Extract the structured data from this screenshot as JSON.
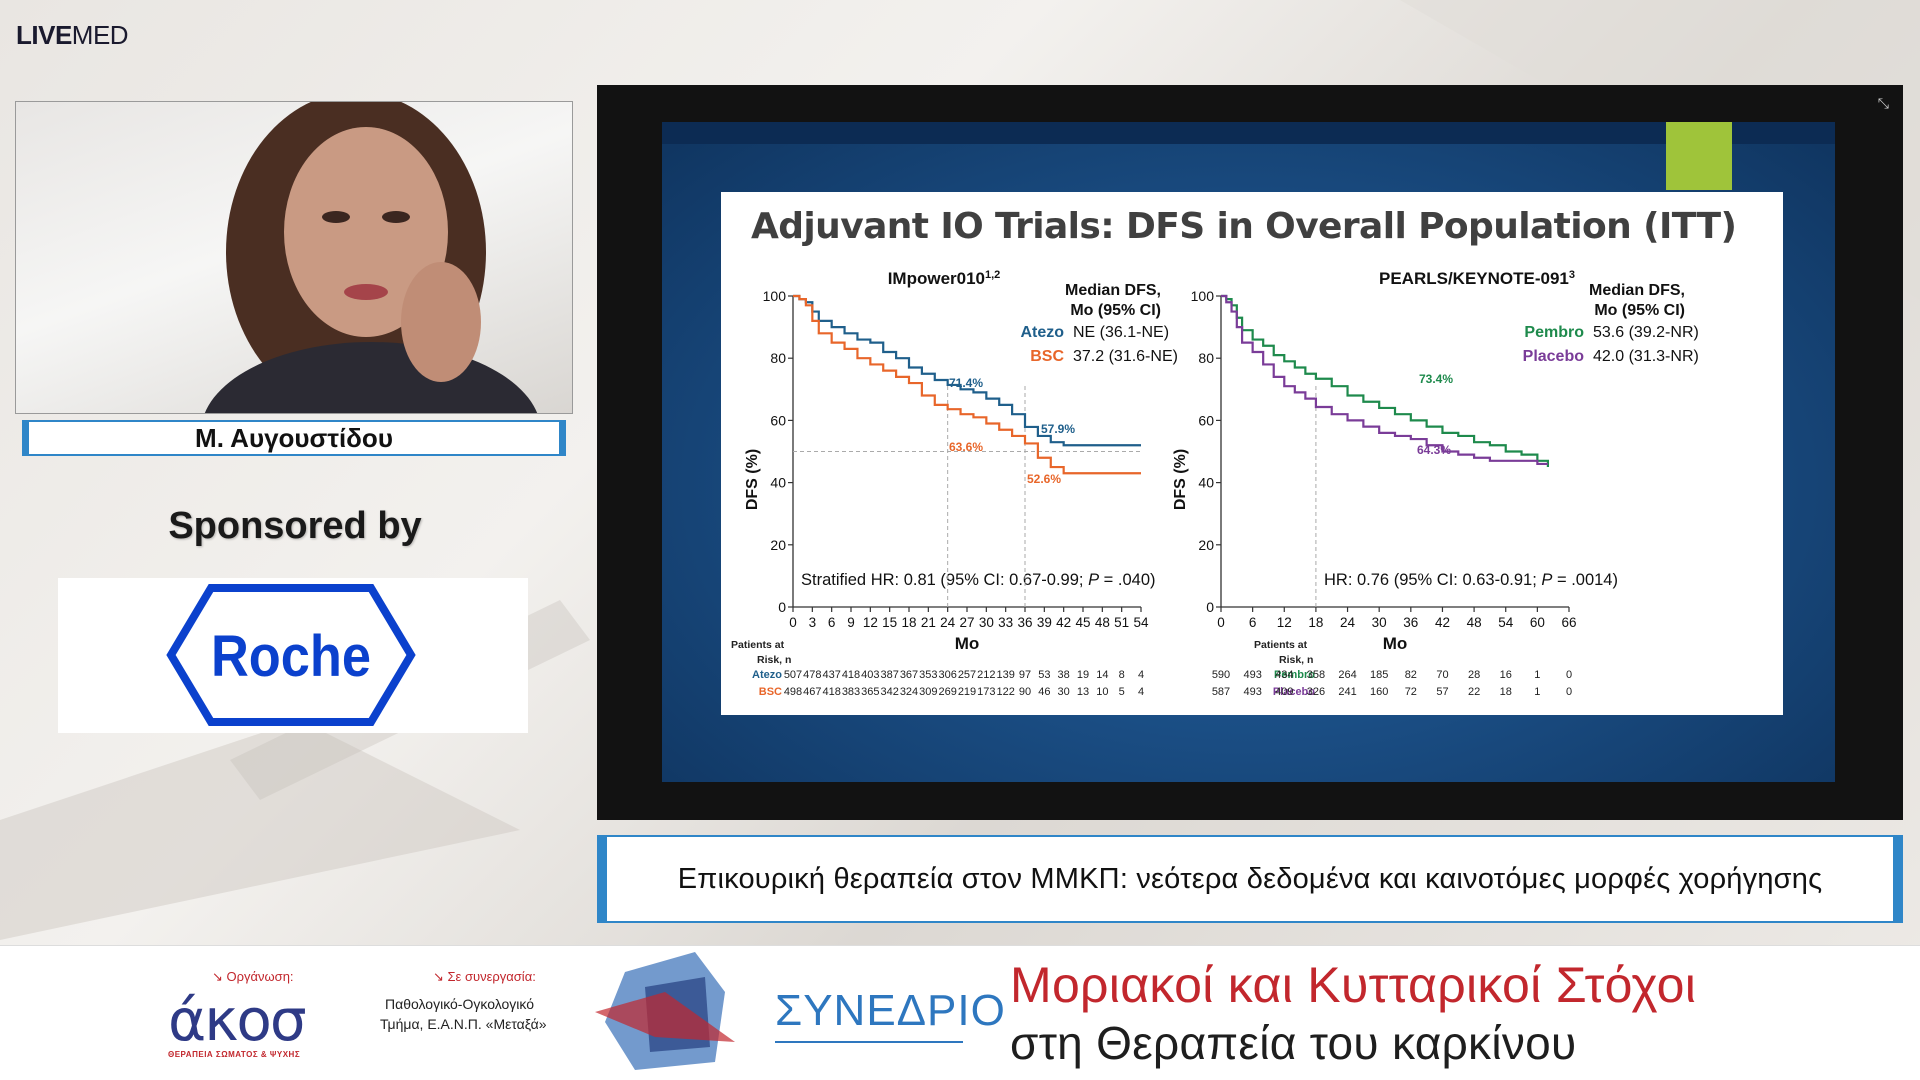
{
  "brand": {
    "bold": "LIVE",
    "rest": "MED"
  },
  "speaker": {
    "name": "Μ. Αυγουστίδου"
  },
  "sponsor": {
    "heading": "Sponsored by",
    "logo_text": "Roche",
    "logo_color": "#0b41cd"
  },
  "slide": {
    "title": "Adjuvant IO Trials: DFS in Overall Population (ITT)",
    "left": {
      "trial": "IMpower010",
      "trial_sup": "1,2",
      "median_header_1": "Median DFS,",
      "median_header_2": "Mo (95% CI)",
      "arm1_name": "Atezo",
      "arm1_value": "NE (36.1-NE)",
      "arm2_name": "BSC",
      "arm2_value": "37.2 (31.6-NE)",
      "hr_prefix": "Stratified HR: 0.81 (95% CI: 0.67-0.99; ",
      "hr_p_label": "P",
      "hr_suffix": " = .040)",
      "annot_71": "71.4%",
      "annot_57": "57.9%",
      "annot_63": "63.6%",
      "annot_52": "52.6%",
      "risk_header_1": "Patients at",
      "risk_header_2": "Risk, n",
      "risk_arm1": "Atezo",
      "risk_arm1_values": [
        "507",
        "478",
        "437",
        "418",
        "403",
        "387",
        "367",
        "353",
        "306",
        "257",
        "212",
        "139",
        "97",
        "53",
        "38",
        "19",
        "14",
        "8",
        "4"
      ],
      "risk_arm2": "BSC",
      "risk_arm2_values": [
        "498",
        "467",
        "418",
        "383",
        "365",
        "342",
        "324",
        "309",
        "269",
        "219",
        "173",
        "122",
        "90",
        "46",
        "30",
        "13",
        "10",
        "5",
        "4"
      ]
    },
    "right": {
      "trial": "PEARLS/KEYNOTE-091",
      "trial_sup": "3",
      "median_header_1": "Median DFS,",
      "median_header_2": "Mo (95% CI)",
      "arm1_name": "Pembro",
      "arm1_value": "53.6 (39.2-NR)",
      "arm2_name": "Placebo",
      "arm2_value": "42.0 (31.3-NR)",
      "hr_prefix": "HR: 0.76 (95% CI: 0.63-0.91; ",
      "hr_p_label": "P",
      "hr_suffix": " = .0014)",
      "annot_73": "73.4%",
      "annot_64": "64.3%",
      "risk_header_1": "Patients at",
      "risk_header_2": "Risk, n",
      "risk_arm1": "Pembro",
      "risk_arm1_values": [
        "590",
        "493",
        "434",
        "358",
        "264",
        "185",
        "82",
        "70",
        "28",
        "16",
        "1",
        "0"
      ],
      "risk_arm2": "Placebo",
      "risk_arm2_values": [
        "587",
        "493",
        "409",
        "326",
        "241",
        "160",
        "72",
        "57",
        "22",
        "18",
        "1",
        "0"
      ]
    },
    "colors": {
      "atezo": "#1f5f8b",
      "bsc": "#e8662a",
      "pembro": "#1e8a4c",
      "placebo": "#7a3c98"
    }
  },
  "caption": "Επικουρική θεραπεία στον ΜΜΚΠ: νεότερα δεδομένα και καινοτόμες μορφές χορήγησης",
  "footer": {
    "org_label": "↘ Οργάνωση:",
    "org_logo": "άκοσ",
    "org_sub": "ΘΕΡΑΠΕΙΑ ΣΩΜΑΤΟΣ & ΨΥΧΗΣ",
    "coop_label": "↘ Σε συνεργασία:",
    "coop_line1": "Παθολογικό-Ογκολογικό",
    "coop_line2": "Τμήμα, Ε.Α.Ν.Π. «Μεταξά»",
    "congress": "ΣΥΝΕΔΡΙΟ",
    "conf_line1": "Μοριακοί και Κυτταρικοί Στόχοι",
    "conf_line2": "στη Θεραπεία του καρκίνου"
  },
  "chart_data": [
    {
      "type": "line",
      "title": "IMpower010",
      "xlabel": "Mo",
      "ylabel": "DFS (%)",
      "xlim": [
        0,
        54
      ],
      "ylim": [
        0,
        100
      ],
      "x_ticks": [
        0,
        3,
        6,
        9,
        12,
        15,
        18,
        21,
        24,
        27,
        30,
        33,
        36,
        39,
        42,
        45,
        48,
        51,
        54
      ],
      "y_ticks": [
        0,
        20,
        40,
        60,
        80,
        100
      ],
      "series": [
        {
          "name": "Atezo",
          "x": [
            0,
            1,
            2,
            3,
            4,
            6,
            8,
            10,
            12,
            14,
            16,
            18,
            20,
            22,
            24,
            26,
            28,
            30,
            32,
            34,
            36,
            38,
            40,
            42,
            44,
            46,
            48,
            50,
            52,
            54
          ],
          "y": [
            100,
            99,
            98,
            95,
            92,
            90,
            88,
            86,
            85,
            82,
            80,
            77,
            75,
            73,
            71.4,
            70,
            69,
            67,
            65,
            62,
            57.9,
            55,
            53,
            52,
            52,
            52,
            52,
            52,
            52,
            52
          ]
        },
        {
          "name": "BSC",
          "x": [
            0,
            1,
            2,
            3,
            4,
            6,
            8,
            10,
            12,
            14,
            16,
            18,
            20,
            22,
            24,
            26,
            28,
            30,
            32,
            34,
            36,
            38,
            40,
            42,
            44,
            46,
            48,
            50,
            52,
            54
          ],
          "y": [
            100,
            99,
            97,
            92,
            88,
            85,
            83,
            80,
            78,
            76,
            74,
            72,
            68,
            65,
            63.6,
            62,
            61,
            59,
            57,
            55,
            52.6,
            48,
            45,
            43,
            43,
            43,
            43,
            43,
            43,
            43
          ]
        }
      ]
    },
    {
      "type": "line",
      "title": "PEARLS/KEYNOTE-091",
      "xlabel": "Mo",
      "ylabel": "DFS (%)",
      "xlim": [
        0,
        66
      ],
      "ylim": [
        0,
        100
      ],
      "x_ticks": [
        0,
        6,
        12,
        18,
        24,
        30,
        36,
        42,
        48,
        54,
        60,
        66
      ],
      "y_ticks": [
        0,
        20,
        40,
        60,
        80,
        100
      ],
      "series": [
        {
          "name": "Pembro",
          "x": [
            0,
            1,
            2,
            3,
            4,
            6,
            8,
            10,
            12,
            14,
            16,
            18,
            21,
            24,
            27,
            30,
            33,
            36,
            39,
            42,
            45,
            48,
            51,
            54,
            57,
            60,
            62
          ],
          "y": [
            100,
            99,
            97,
            93,
            89,
            86,
            84,
            81,
            79,
            77,
            75,
            73.4,
            71,
            68,
            66,
            64,
            62,
            60,
            58,
            56,
            55,
            53,
            52,
            50,
            49,
            47,
            45
          ]
        },
        {
          "name": "Placebo",
          "x": [
            0,
            1,
            2,
            3,
            4,
            6,
            8,
            10,
            12,
            14,
            16,
            18,
            21,
            24,
            27,
            30,
            33,
            36,
            39,
            42,
            45,
            48,
            51,
            54,
            57,
            60,
            62
          ],
          "y": [
            100,
            98,
            95,
            90,
            85,
            82,
            78,
            74,
            71,
            69,
            67,
            64.3,
            62,
            60,
            58,
            56,
            55,
            54,
            52,
            50,
            49,
            48,
            47,
            47,
            47,
            46,
            46
          ]
        }
      ]
    }
  ]
}
